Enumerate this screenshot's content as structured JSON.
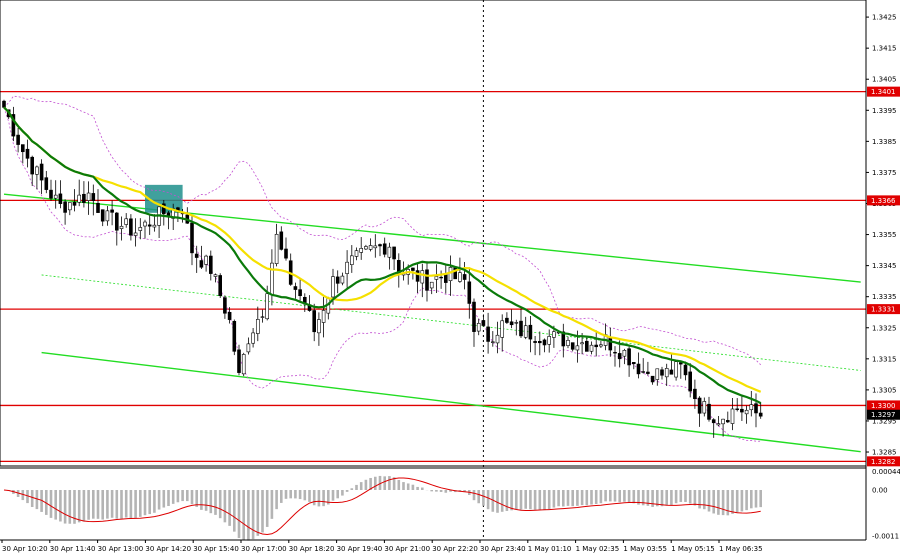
{
  "chart_data": {
    "type": "candlestick",
    "symbol_pair_note": "",
    "price_axis": {
      "ylim": [
        1.32805,
        1.34305
      ],
      "ticks": [
        "1.3425",
        "1.3415",
        "1.3405",
        "1.3395",
        "1.3385",
        "1.3375",
        "1.3365",
        "1.3355",
        "1.3345",
        "1.3335",
        "1.3325",
        "1.3315",
        "1.3305",
        "1.3295",
        "1.3285"
      ]
    },
    "time_axis": {
      "labels": [
        "30 Apr 10:20",
        "30 Apr 11:40",
        "30 Apr 13:00",
        "30 Apr 14:20",
        "30 Apr 15:40",
        "30 Apr 17:00",
        "30 Apr 18:20",
        "30 Apr 19:40",
        "30 Apr 21:00",
        "30 Apr 22:20",
        "30 Apr 23:40",
        "1 May 01:10",
        "1 May 02:35",
        "1 May 03:55",
        "1 May 05:15",
        "1 May 06:35"
      ],
      "bar_count": 162
    },
    "levels": [
      {
        "price": 1.3401,
        "label": "1.3401",
        "color": "#e00000"
      },
      {
        "price": 1.3366,
        "label": "1.3366",
        "color": "#e00000"
      },
      {
        "price": 1.3331,
        "label": "1.3331",
        "color": "#e00000"
      },
      {
        "price": 1.33,
        "label": "1.3300",
        "color": "#e00000"
      },
      {
        "price": 1.3282,
        "label": "1.3282",
        "color": "#e00000"
      }
    ],
    "current_price": {
      "price": 1.3297,
      "label": "1.3297",
      "color": "#000000"
    },
    "close_anchors": [
      [
        0,
        1.3396
      ],
      [
        4,
        1.3382
      ],
      [
        8,
        1.3372
      ],
      [
        12,
        1.3364
      ],
      [
        18,
        1.3368
      ],
      [
        22,
        1.336
      ],
      [
        28,
        1.3356
      ],
      [
        34,
        1.3362
      ],
      [
        38,
        1.3364
      ],
      [
        40,
        1.335
      ],
      [
        44,
        1.3344
      ],
      [
        48,
        1.3327
      ],
      [
        50,
        1.3309
      ],
      [
        52,
        1.3322
      ],
      [
        55,
        1.3331
      ],
      [
        58,
        1.3354
      ],
      [
        61,
        1.334
      ],
      [
        64,
        1.3333
      ],
      [
        66,
        1.3324
      ],
      [
        70,
        1.334
      ],
      [
        74,
        1.3346
      ],
      [
        78,
        1.335
      ],
      [
        82,
        1.3352
      ],
      [
        84,
        1.3344
      ],
      [
        90,
        1.334
      ],
      [
        94,
        1.3342
      ],
      [
        98,
        1.334
      ],
      [
        100,
        1.3326
      ],
      [
        103,
        1.3322
      ],
      [
        106,
        1.3326
      ],
      [
        110,
        1.3324
      ],
      [
        116,
        1.3322
      ],
      [
        120,
        1.3321
      ],
      [
        124,
        1.332
      ],
      [
        128,
        1.3321
      ],
      [
        132,
        1.3317
      ],
      [
        136,
        1.3311
      ],
      [
        140,
        1.331
      ],
      [
        144,
        1.3312
      ],
      [
        146,
        1.3306
      ],
      [
        148,
        1.33
      ],
      [
        152,
        1.3296
      ],
      [
        156,
        1.3299
      ],
      [
        161,
        1.3297
      ]
    ],
    "signal_box": {
      "bar_from": 30,
      "bar_to": 38,
      "price_low": 1.3362,
      "price_high": 1.3371,
      "color": "#1f8f8c"
    },
    "overlays": [
      {
        "kind": "sma_fast",
        "color": "#0a7a0a"
      },
      {
        "kind": "sma_slow",
        "color": "#f5e000"
      },
      {
        "kind": "bollinger",
        "color": "#c24fd1"
      }
    ],
    "channel": {
      "color": "#22dd22",
      "upper": {
        "from": [
          0,
          1.3368
        ],
        "to": [
          161,
          1.3343
        ]
      },
      "lower": {
        "from": [
          8,
          1.3317
        ],
        "to": [
          161,
          1.3289
        ]
      },
      "mid": {
        "from": [
          8,
          1.3342
        ],
        "to": [
          161,
          1.3315
        ]
      }
    },
    "oscillator": {
      "type": "macd_histogram",
      "ticks": [
        "0.00044",
        "0.00",
        "-0.0011"
      ],
      "ylim": [
        -0.0012,
        0.00048
      ],
      "hist_color": "#b4b4b4",
      "signal_color": "#dd0000"
    },
    "vertical_marker_bar": 102
  }
}
